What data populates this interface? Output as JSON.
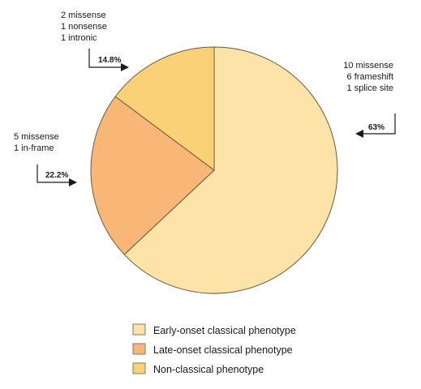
{
  "chart_data": {
    "type": "pie",
    "title": "",
    "slices": [
      {
        "label": "Early-onset classical phenotype",
        "value": 63,
        "percent_label": "63%",
        "color": "#fde3a7",
        "annotation": [
          "10 missense",
          "6 frameshift",
          "1 splice site"
        ]
      },
      {
        "label": "Late-onset classical phenotype",
        "value": 22.2,
        "percent_label": "22.2%",
        "color": "#f8b777",
        "annotation": [
          "5 missense",
          "1 in-frame"
        ]
      },
      {
        "label": "Non-classical phenotype",
        "value": 14.8,
        "percent_label": "14.8%",
        "color": "#fbd178",
        "annotation": [
          "2 missense",
          "1 nonsense",
          "1 intronic"
        ]
      }
    ],
    "legend_position": "bottom",
    "colors": {
      "outline": "#6a5a40",
      "text": "#1a1a1a",
      "legend_border": "#7a7a7a"
    }
  }
}
